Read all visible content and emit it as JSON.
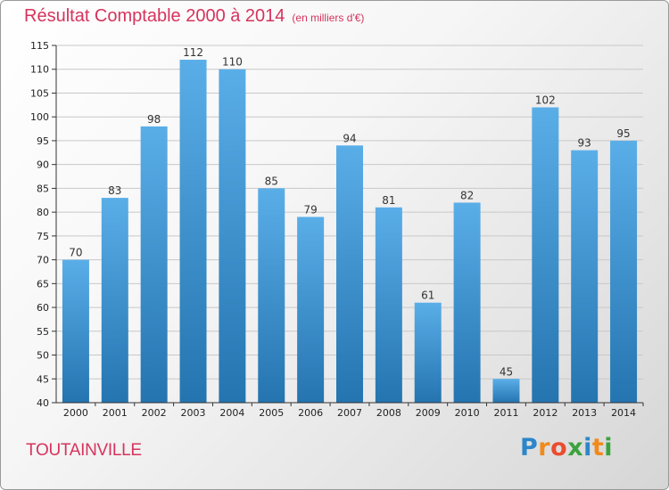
{
  "title": "Résultat Comptable 2000 à 2014",
  "subtitle": "(en milliers d'€)",
  "commune": "TOUTAINVILLE",
  "logo_text": "Proxiti",
  "colors": {
    "title": "#d6335c",
    "bar_top": "#5aaee8",
    "bar_bottom": "#2474b0",
    "grid": "#c8c8c8",
    "axis": "#333333"
  },
  "chart_data": {
    "type": "bar",
    "title": "Résultat Comptable 2000 à 2014",
    "subtitle": "(en milliers d'€)",
    "xlabel": "",
    "ylabel": "",
    "categories": [
      "2000",
      "2001",
      "2002",
      "2003",
      "2004",
      "2005",
      "2006",
      "2007",
      "2008",
      "2009",
      "2010",
      "2011",
      "2012",
      "2013",
      "2014"
    ],
    "values": [
      70,
      83,
      98,
      112,
      110,
      85,
      79,
      94,
      81,
      61,
      82,
      45,
      102,
      93,
      95
    ],
    "ylim": [
      40,
      115
    ],
    "yticks": [
      40,
      45,
      50,
      55,
      60,
      65,
      70,
      75,
      80,
      85,
      90,
      95,
      100,
      105,
      110,
      115
    ],
    "grid": true,
    "legend": "none"
  }
}
